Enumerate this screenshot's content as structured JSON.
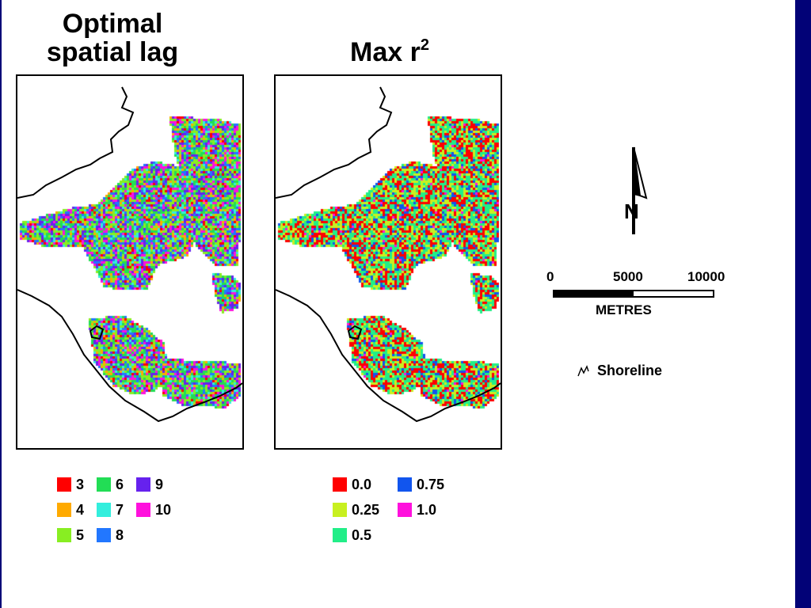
{
  "titles": {
    "left_line1": "Optimal",
    "left_line2": "spatial lag",
    "right_main": "Max r",
    "right_sup": "2"
  },
  "legend_lag": {
    "items": [
      {
        "label": "3",
        "color": "#ff0000"
      },
      {
        "label": "4",
        "color": "#ffaa00"
      },
      {
        "label": "5",
        "color": "#88ee22"
      },
      {
        "label": "6",
        "color": "#22dd55"
      },
      {
        "label": "7",
        "color": "#33eedd"
      },
      {
        "label": "8",
        "color": "#2277ff"
      },
      {
        "label": "9",
        "color": "#6622ee"
      },
      {
        "label": "10",
        "color": "#ff11dd"
      }
    ]
  },
  "legend_r2": {
    "items": [
      {
        "label": "0.0",
        "color": "#ff0000"
      },
      {
        "label": "0.25",
        "color": "#c8f020"
      },
      {
        "label": "0.5",
        "color": "#22ee88"
      },
      {
        "label": "0.75",
        "color": "#1155ee"
      },
      {
        "label": "1.0",
        "color": "#ff11dd"
      }
    ]
  },
  "scale_bar": {
    "labels": [
      "0",
      "5000",
      "10000"
    ],
    "unit": "METRES"
  },
  "north_arrow": {
    "letter": "N",
    "icon": "north-arrow-icon"
  },
  "shoreline_legend": {
    "label": "Shoreline",
    "icon": "shoreline-squiggle-icon"
  },
  "colors": {
    "slide_border": "#020277",
    "shoreline": "#000000",
    "background": "#ffffff"
  }
}
